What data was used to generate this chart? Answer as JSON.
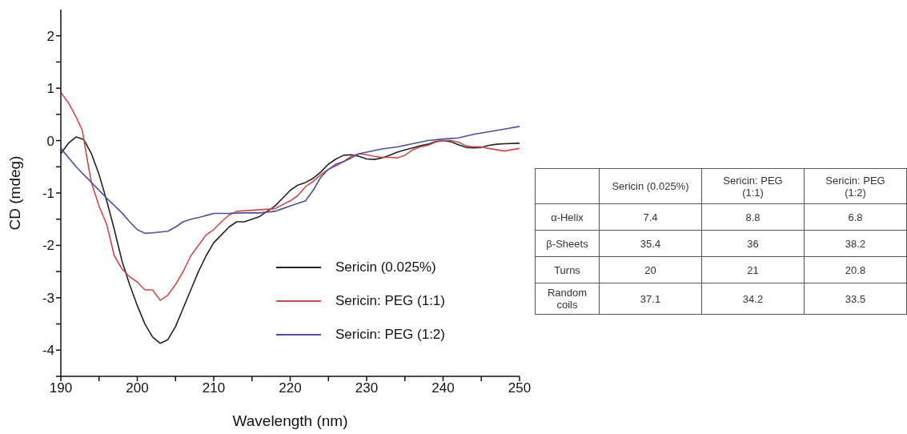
{
  "chart_data": [
    {
      "type": "line",
      "xlabel": "Wavelength (nm)",
      "ylabel": "CD (mdeg)",
      "xlim": [
        190,
        250
      ],
      "ylim": [
        -4.5,
        2.5
      ],
      "xticks": [
        190,
        {
          "value": 195,
          "label": null
        },
        200,
        {
          "value": 205,
          "label": null
        },
        210,
        {
          "value": 215,
          "label": null
        },
        220,
        {
          "value": 225,
          "label": null
        },
        230,
        {
          "value": 235,
          "label": null
        },
        240,
        {
          "value": 245,
          "label": null
        },
        250
      ],
      "yticks": [
        {
          "value": -4.5,
          "label": null
        },
        -4,
        {
          "value": -3.5,
          "label": null
        },
        -3,
        {
          "value": -2.5,
          "label": null
        },
        -2,
        {
          "value": -1.5,
          "label": null
        },
        -1,
        {
          "value": -0.5,
          "label": null
        },
        0,
        {
          "value": 0.5,
          "label": null
        },
        1,
        {
          "value": 1.5,
          "label": null
        },
        2
      ],
      "grid": false,
      "legend": "bottom right",
      "marker": "none",
      "line_style": "solid",
      "series": [
        {
          "name": "Sericin (0.025%)",
          "color": "#222222",
          "x": [
            190,
            191,
            192,
            193,
            194,
            195,
            196,
            197,
            198,
            199,
            200,
            201,
            202,
            203,
            204,
            205,
            206,
            207,
            208,
            209,
            210,
            211,
            212,
            213,
            214,
            215,
            216,
            217,
            218,
            220,
            221,
            222,
            223,
            224,
            225,
            226,
            227,
            228,
            229,
            230,
            231,
            232,
            233,
            234,
            235,
            236,
            237,
            238,
            239,
            240,
            241,
            242,
            243,
            244,
            245,
            246,
            247,
            248,
            250
          ],
          "values": [
            -0.25,
            -0.05,
            0.07,
            0.02,
            -0.25,
            -0.65,
            -1.15,
            -1.7,
            -2.3,
            -2.75,
            -3.15,
            -3.5,
            -3.75,
            -3.87,
            -3.8,
            -3.55,
            -3.2,
            -2.85,
            -2.5,
            -2.2,
            -1.95,
            -1.8,
            -1.65,
            -1.55,
            -1.55,
            -1.5,
            -1.45,
            -1.35,
            -1.25,
            -0.95,
            -0.85,
            -0.8,
            -0.72,
            -0.6,
            -0.45,
            -0.35,
            -0.28,
            -0.27,
            -0.3,
            -0.35,
            -0.36,
            -0.33,
            -0.28,
            -0.22,
            -0.18,
            -0.14,
            -0.1,
            -0.07,
            -0.02,
            0.0,
            -0.02,
            -0.08,
            -0.13,
            -0.14,
            -0.13,
            -0.09,
            -0.07,
            -0.06,
            -0.05
          ]
        },
        {
          "name": "Sericin: PEG (1:1)",
          "color": "#cc4a4a",
          "x": [
            190,
            191,
            192,
            192.8,
            193.5,
            194,
            195,
            196,
            197,
            198,
            199,
            200,
            201,
            202,
            203,
            204,
            205,
            206,
            207,
            208,
            209,
            210,
            211,
            212,
            213,
            215,
            218,
            220,
            221,
            222,
            223,
            224,
            225,
            226,
            227,
            228,
            229,
            230,
            231,
            232,
            233,
            234,
            235,
            236,
            237,
            238,
            239,
            240,
            241,
            242,
            243,
            244,
            245,
            246,
            248,
            250
          ],
          "values": [
            0.92,
            0.72,
            0.45,
            0.2,
            -0.4,
            -0.8,
            -1.25,
            -1.6,
            -2.2,
            -2.45,
            -2.6,
            -2.7,
            -2.85,
            -2.85,
            -3.05,
            -2.95,
            -2.75,
            -2.5,
            -2.2,
            -2.0,
            -1.8,
            -1.7,
            -1.55,
            -1.42,
            -1.35,
            -1.33,
            -1.3,
            -1.15,
            -1.05,
            -0.88,
            -0.78,
            -0.65,
            -0.55,
            -0.48,
            -0.4,
            -0.3,
            -0.25,
            -0.27,
            -0.3,
            -0.32,
            -0.32,
            -0.33,
            -0.28,
            -0.18,
            -0.12,
            -0.09,
            -0.03,
            0.0,
            0.0,
            -0.03,
            -0.1,
            -0.12,
            -0.12,
            -0.15,
            -0.2,
            -0.15
          ]
        },
        {
          "name": "Sericin: PEG (1:2)",
          "color": "#4a4fa0",
          "x": [
            190,
            192,
            194,
            196,
            198,
            199,
            200,
            201,
            202,
            204,
            205,
            206,
            207,
            208,
            209,
            210,
            212,
            214,
            216,
            218,
            219,
            220,
            221,
            222,
            223,
            224,
            225,
            226,
            227,
            228,
            229,
            230,
            232,
            234,
            236,
            238,
            240,
            242,
            244,
            246,
            248,
            250
          ],
          "values": [
            -0.15,
            -0.5,
            -0.8,
            -1.1,
            -1.38,
            -1.55,
            -1.7,
            -1.77,
            -1.76,
            -1.73,
            -1.65,
            -1.55,
            -1.5,
            -1.47,
            -1.43,
            -1.39,
            -1.39,
            -1.38,
            -1.38,
            -1.35,
            -1.3,
            -1.25,
            -1.2,
            -1.15,
            -0.95,
            -0.7,
            -0.55,
            -0.45,
            -0.4,
            -0.33,
            -0.25,
            -0.22,
            -0.16,
            -0.12,
            -0.06,
            0.0,
            0.03,
            0.05,
            0.12,
            0.17,
            0.22,
            0.27
          ]
        }
      ]
    },
    {
      "type": "other",
      "data_labels": true,
      "categories": [
        "α-Helix",
        "β-Sheets",
        "Turns",
        "Random coils"
      ],
      "series": [
        {
          "name": "Sericin (0.025%)",
          "values": [
            7.4,
            35.4,
            20,
            37.1
          ]
        },
        {
          "name": "Sericin: PEG (1:1)",
          "values": [
            8.8,
            36,
            21,
            34.2
          ]
        },
        {
          "name": "Sericin: PEG (1:2)",
          "values": [
            6.8,
            38.2,
            20.8,
            33.5
          ]
        }
      ]
    }
  ]
}
